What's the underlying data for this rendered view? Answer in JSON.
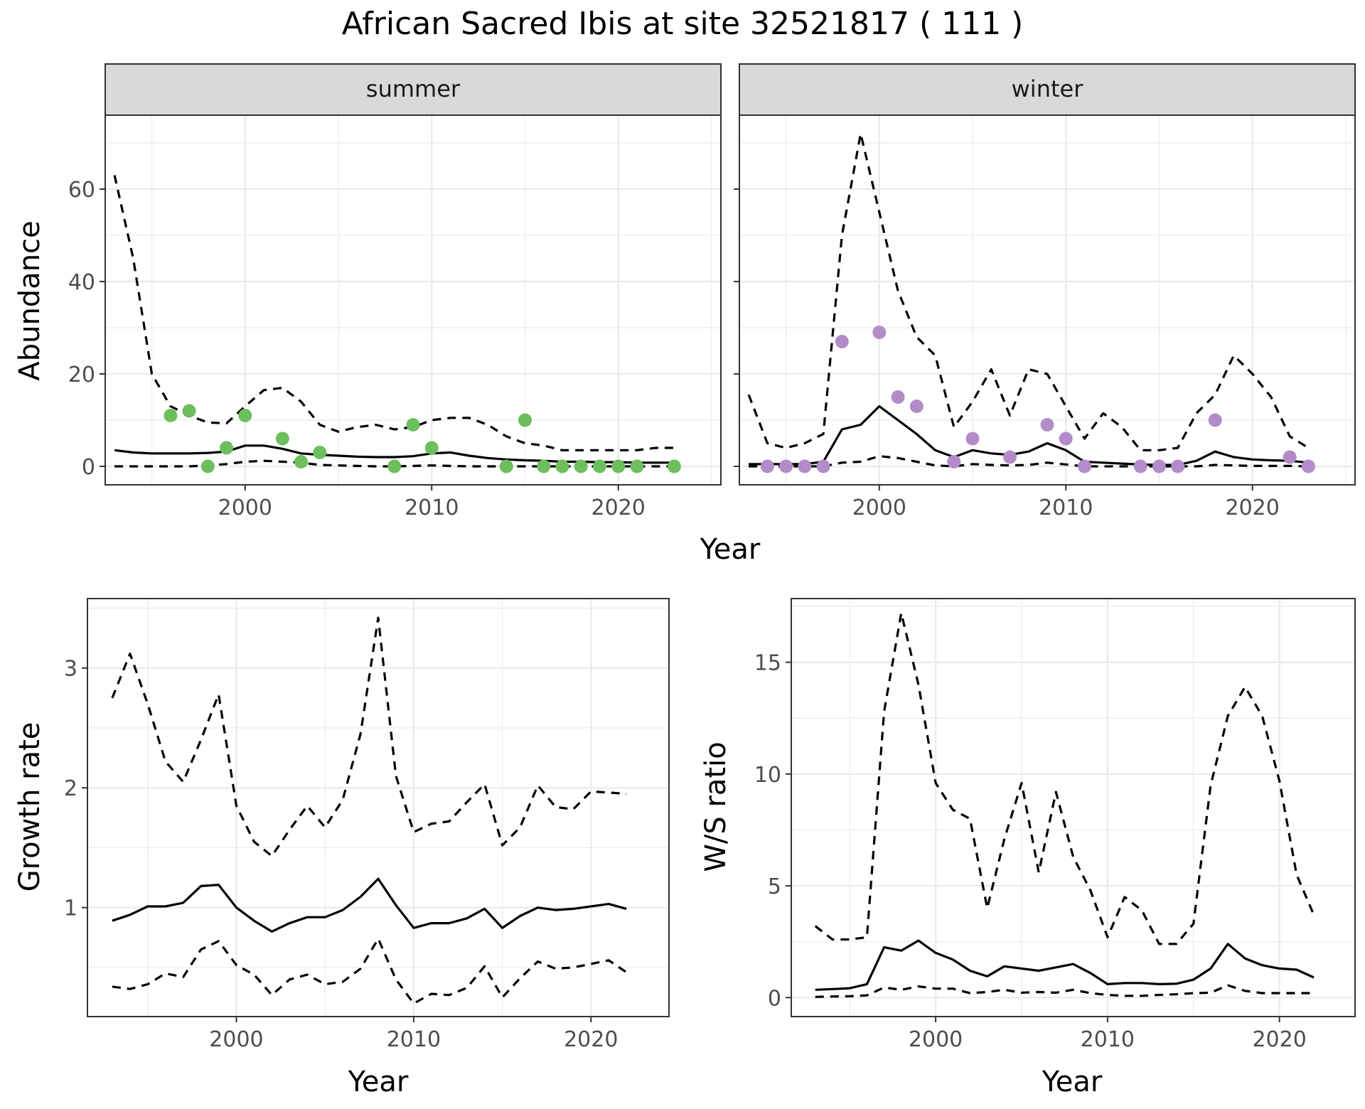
{
  "title": "African Sacred Ibis at site 32521817 ( 111 )",
  "colors": {
    "summer_points": "#6DBE5D",
    "winter_points": "#B38BC9",
    "strip_bg": "#D9D9D9",
    "grid": "#EBEBEB",
    "line": "#000000"
  },
  "chart_data": [
    {
      "type": "line",
      "panel": "summer",
      "strip_label": "summer",
      "xlabel": "Year",
      "ylabel": "Abundance",
      "xlim": [
        1992.5,
        2025.5
      ],
      "ylim": [
        -4,
        76
      ],
      "xticks": [
        2000,
        2010,
        2020
      ],
      "yticks": [
        0,
        20,
        40,
        60
      ],
      "x": [
        1993,
        1994,
        1995,
        1996,
        1997,
        1998,
        1999,
        2000,
        2001,
        2002,
        2003,
        2004,
        2005,
        2006,
        2007,
        2008,
        2009,
        2010,
        2011,
        2012,
        2013,
        2014,
        2015,
        2016,
        2017,
        2018,
        2019,
        2020,
        2021,
        2022,
        2023
      ],
      "series": [
        {
          "style": "solid",
          "values": [
            3.5,
            3,
            2.8,
            2.8,
            2.8,
            2.9,
            3.2,
            4.5,
            4.5,
            3.8,
            2.8,
            2.5,
            2.3,
            2.1,
            2,
            2,
            2.2,
            2.8,
            3.0,
            2.3,
            1.8,
            1.5,
            1.3,
            1.2,
            1.0,
            1.0,
            0.9,
            0.9,
            0.8,
            0.8,
            0.8
          ]
        },
        {
          "style": "dashed",
          "values": [
            63,
            45,
            20,
            13,
            11,
            9.5,
            9.3,
            13,
            16.5,
            17,
            14,
            9,
            7.5,
            8.5,
            9,
            8,
            8.5,
            10,
            10.5,
            10.5,
            9,
            6.5,
            5,
            4.5,
            3.5,
            3.5,
            3.5,
            3.5,
            3.5,
            4,
            4
          ]
        },
        {
          "style": "dashed",
          "values": [
            0,
            0,
            0,
            0,
            0,
            0.2,
            0.5,
            1,
            1.2,
            1,
            0.8,
            0.3,
            0.2,
            0.1,
            0,
            0,
            0.1,
            0.2,
            0.1,
            0,
            0,
            0,
            0,
            0,
            0,
            0,
            0,
            0,
            0,
            0,
            0
          ]
        }
      ],
      "points": [
        {
          "x": 1996,
          "y": 11
        },
        {
          "x": 1997,
          "y": 12
        },
        {
          "x": 1998,
          "y": 0
        },
        {
          "x": 1999,
          "y": 4
        },
        {
          "x": 2000,
          "y": 11
        },
        {
          "x": 2002,
          "y": 6
        },
        {
          "x": 2003,
          "y": 1
        },
        {
          "x": 2004,
          "y": 3
        },
        {
          "x": 2008,
          "y": 0
        },
        {
          "x": 2009,
          "y": 9
        },
        {
          "x": 2010,
          "y": 4
        },
        {
          "x": 2014,
          "y": 0
        },
        {
          "x": 2015,
          "y": 10
        },
        {
          "x": 2016,
          "y": 0
        },
        {
          "x": 2017,
          "y": 0
        },
        {
          "x": 2018,
          "y": 0
        },
        {
          "x": 2019,
          "y": 0
        },
        {
          "x": 2020,
          "y": 0
        },
        {
          "x": 2021,
          "y": 0
        },
        {
          "x": 2023,
          "y": 0
        }
      ]
    },
    {
      "type": "line",
      "panel": "winter",
      "strip_label": "winter",
      "xlabel": "Year",
      "ylabel": "",
      "xlim": [
        1992.5,
        2025.5
      ],
      "ylim": [
        -4,
        76
      ],
      "xticks": [
        2000,
        2010,
        2020
      ],
      "yticks": [
        0,
        20,
        40,
        60
      ],
      "x": [
        1993,
        1994,
        1995,
        1996,
        1997,
        1998,
        1999,
        2000,
        2001,
        2002,
        2003,
        2004,
        2005,
        2006,
        2007,
        2008,
        2009,
        2010,
        2011,
        2012,
        2013,
        2014,
        2015,
        2016,
        2017,
        2018,
        2019,
        2020,
        2021,
        2022,
        2023
      ],
      "series": [
        {
          "style": "solid",
          "values": [
            0.5,
            0.5,
            0.5,
            0.5,
            1,
            8,
            9,
            13,
            10,
            7,
            3.5,
            2,
            3.5,
            2.8,
            2.5,
            3.2,
            5,
            3.5,
            1,
            0.8,
            0.6,
            0.4,
            0.3,
            0.3,
            1.2,
            3.2,
            2,
            1.5,
            1.3,
            1.2,
            0.8
          ]
        },
        {
          "style": "dashed",
          "values": [
            15.5,
            5,
            4,
            5,
            7,
            50,
            72,
            55,
            38,
            28,
            24,
            8.5,
            14,
            21,
            11,
            21,
            20,
            13,
            6,
            11.5,
            8.5,
            3.5,
            3.5,
            4,
            11.5,
            15.5,
            24,
            20,
            15,
            6.5,
            4
          ]
        },
        {
          "style": "dashed",
          "values": [
            0,
            0,
            0,
            0,
            0,
            0.8,
            1,
            2.2,
            1.8,
            1,
            0.2,
            0,
            0.5,
            0.3,
            0.2,
            0.3,
            0.8,
            0.4,
            0,
            0,
            0,
            0,
            0,
            0,
            0,
            0.3,
            0.2,
            0.1,
            0.1,
            0.1,
            0
          ]
        }
      ],
      "points": [
        {
          "x": 1994,
          "y": 0
        },
        {
          "x": 1995,
          "y": 0
        },
        {
          "x": 1996,
          "y": 0
        },
        {
          "x": 1997,
          "y": 0
        },
        {
          "x": 1998,
          "y": 27
        },
        {
          "x": 2000,
          "y": 29
        },
        {
          "x": 2001,
          "y": 15
        },
        {
          "x": 2002,
          "y": 13
        },
        {
          "x": 2004,
          "y": 1
        },
        {
          "x": 2005,
          "y": 6
        },
        {
          "x": 2007,
          "y": 2
        },
        {
          "x": 2009,
          "y": 9
        },
        {
          "x": 2010,
          "y": 6
        },
        {
          "x": 2011,
          "y": 0
        },
        {
          "x": 2014,
          "y": 0
        },
        {
          "x": 2015,
          "y": 0
        },
        {
          "x": 2016,
          "y": 0
        },
        {
          "x": 2018,
          "y": 10
        },
        {
          "x": 2022,
          "y": 2
        },
        {
          "x": 2023,
          "y": 0
        }
      ]
    },
    {
      "type": "line",
      "panel": "growth",
      "xlabel": "Year",
      "ylabel": "Growth rate",
      "xlim": [
        1991.6,
        2024.4
      ],
      "ylim": [
        0.09,
        3.58
      ],
      "xticks": [
        2000,
        2010,
        2020
      ],
      "yticks": [
        1,
        2,
        3
      ],
      "x": [
        1993,
        1994,
        1995,
        1996,
        1997,
        1998,
        1999,
        2000,
        2001,
        2002,
        2003,
        2004,
        2005,
        2006,
        2007,
        2008,
        2009,
        2010,
        2011,
        2012,
        2013,
        2014,
        2015,
        2016,
        2017,
        2018,
        2019,
        2020,
        2021,
        2022
      ],
      "series": [
        {
          "style": "solid",
          "values": [
            0.89,
            0.94,
            1.01,
            1.01,
            1.04,
            1.18,
            1.19,
            1.0,
            0.89,
            0.8,
            0.87,
            0.92,
            0.92,
            0.98,
            1.09,
            1.24,
            1.02,
            0.83,
            0.87,
            0.87,
            0.91,
            0.99,
            0.83,
            0.93,
            1.0,
            0.98,
            0.99,
            1.01,
            1.03,
            0.99
          ]
        },
        {
          "style": "dashed",
          "values": [
            2.75,
            3.12,
            2.7,
            2.22,
            2.05,
            2.4,
            2.78,
            1.85,
            1.55,
            1.43,
            1.65,
            1.85,
            1.67,
            1.9,
            2.45,
            3.42,
            2.1,
            1.63,
            1.7,
            1.72,
            1.88,
            2.03,
            1.52,
            1.67,
            2.02,
            1.84,
            1.82,
            1.97,
            1.96,
            1.95
          ]
        },
        {
          "style": "dashed",
          "values": [
            0.34,
            0.32,
            0.36,
            0.45,
            0.42,
            0.65,
            0.72,
            0.52,
            0.44,
            0.27,
            0.4,
            0.44,
            0.36,
            0.38,
            0.49,
            0.74,
            0.4,
            0.2,
            0.28,
            0.27,
            0.33,
            0.51,
            0.25,
            0.41,
            0.55,
            0.49,
            0.5,
            0.53,
            0.56,
            0.46
          ]
        }
      ]
    },
    {
      "type": "line",
      "panel": "ws_ratio",
      "xlabel": "Year",
      "ylabel": "W/S ratio",
      "xlim": [
        1991.6,
        2024.4
      ],
      "ylim": [
        -0.85,
        17.85
      ],
      "xticks": [
        2000,
        2010,
        2020
      ],
      "yticks": [
        0,
        5,
        10,
        15
      ],
      "x": [
        1993,
        1994,
        1995,
        1996,
        1997,
        1998,
        1999,
        2000,
        2001,
        2002,
        2003,
        2004,
        2005,
        2006,
        2007,
        2008,
        2009,
        2010,
        2011,
        2012,
        2013,
        2014,
        2015,
        2016,
        2017,
        2018,
        2019,
        2020,
        2021,
        2022
      ],
      "series": [
        {
          "style": "solid",
          "values": [
            0.35,
            0.38,
            0.42,
            0.6,
            2.25,
            2.1,
            2.55,
            2.0,
            1.7,
            1.2,
            0.95,
            1.4,
            1.3,
            1.2,
            1.35,
            1.5,
            1.1,
            0.6,
            0.65,
            0.65,
            0.6,
            0.62,
            0.8,
            1.3,
            2.4,
            1.75,
            1.45,
            1.3,
            1.25,
            0.9
          ]
        },
        {
          "style": "dashed",
          "values": [
            3.2,
            2.6,
            2.6,
            2.7,
            12.8,
            17.2,
            14.0,
            9.6,
            8.4,
            8.0,
            4.0,
            7.1,
            9.6,
            5.6,
            9.2,
            6.3,
            4.8,
            2.7,
            4.5,
            3.9,
            2.4,
            2.4,
            3.3,
            9.5,
            12.6,
            13.9,
            12.6,
            9.7,
            5.5,
            3.7
          ]
        },
        {
          "style": "dashed",
          "values": [
            0.03,
            0.05,
            0.06,
            0.1,
            0.45,
            0.35,
            0.5,
            0.4,
            0.4,
            0.2,
            0.25,
            0.35,
            0.22,
            0.25,
            0.22,
            0.35,
            0.2,
            0.12,
            0.08,
            0.08,
            0.12,
            0.15,
            0.2,
            0.22,
            0.55,
            0.3,
            0.2,
            0.2,
            0.2,
            0.2
          ]
        }
      ]
    }
  ]
}
